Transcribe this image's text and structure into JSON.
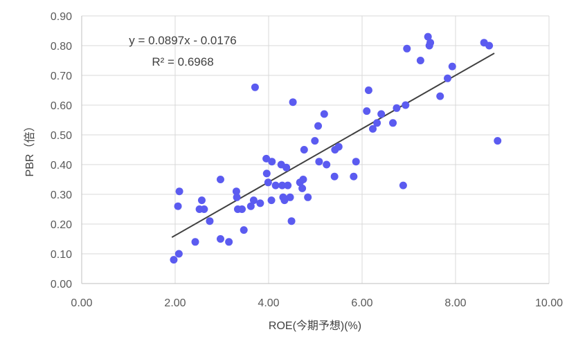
{
  "chart_data": {
    "type": "scatter",
    "title": "",
    "xlabel": "ROE(今期予想)(%)",
    "ylabel": "PBR（倍）",
    "xlim": [
      0,
      10
    ],
    "ylim": [
      0,
      0.9
    ],
    "x_ticks": [
      "0.00",
      "2.00",
      "4.00",
      "6.00",
      "8.00",
      "10.00"
    ],
    "y_ticks": [
      "0.00",
      "0.10",
      "0.20",
      "0.30",
      "0.40",
      "0.50",
      "0.60",
      "0.70",
      "0.80",
      "0.90"
    ],
    "grid": true,
    "legend": "none",
    "colors": {
      "points": "#5B5BF0",
      "trendline": "#404040",
      "grid": "#D9D9D9"
    },
    "points": [
      [
        1.97,
        0.08
      ],
      [
        2.06,
        0.26
      ],
      [
        2.08,
        0.1
      ],
      [
        2.09,
        0.31
      ],
      [
        2.43,
        0.14
      ],
      [
        2.52,
        0.25
      ],
      [
        2.57,
        0.28
      ],
      [
        2.62,
        0.25
      ],
      [
        2.74,
        0.21
      ],
      [
        2.97,
        0.35
      ],
      [
        2.97,
        0.15
      ],
      [
        3.15,
        0.14
      ],
      [
        3.31,
        0.31
      ],
      [
        3.32,
        0.29
      ],
      [
        3.34,
        0.25
      ],
      [
        3.43,
        0.25
      ],
      [
        3.47,
        0.18
      ],
      [
        3.62,
        0.26
      ],
      [
        3.68,
        0.28
      ],
      [
        3.71,
        0.66
      ],
      [
        3.82,
        0.27
      ],
      [
        3.95,
        0.42
      ],
      [
        3.96,
        0.37
      ],
      [
        3.99,
        0.34
      ],
      [
        4.06,
        0.28
      ],
      [
        4.07,
        0.41
      ],
      [
        4.15,
        0.33
      ],
      [
        4.27,
        0.4
      ],
      [
        4.29,
        0.33
      ],
      [
        4.31,
        0.29
      ],
      [
        4.34,
        0.28
      ],
      [
        4.38,
        0.39
      ],
      [
        4.41,
        0.33
      ],
      [
        4.46,
        0.29
      ],
      [
        4.49,
        0.21
      ],
      [
        4.52,
        0.61
      ],
      [
        4.67,
        0.34
      ],
      [
        4.72,
        0.32
      ],
      [
        4.74,
        0.35
      ],
      [
        4.76,
        0.45
      ],
      [
        4.84,
        0.29
      ],
      [
        4.99,
        0.48
      ],
      [
        5.06,
        0.53
      ],
      [
        5.08,
        0.41
      ],
      [
        5.19,
        0.57
      ],
      [
        5.24,
        0.4
      ],
      [
        5.41,
        0.36
      ],
      [
        5.42,
        0.45
      ],
      [
        5.5,
        0.46
      ],
      [
        5.82,
        0.36
      ],
      [
        5.87,
        0.41
      ],
      [
        6.1,
        0.58
      ],
      [
        6.14,
        0.65
      ],
      [
        6.23,
        0.52
      ],
      [
        6.32,
        0.54
      ],
      [
        6.41,
        0.57
      ],
      [
        6.66,
        0.54
      ],
      [
        6.74,
        0.59
      ],
      [
        6.88,
        0.33
      ],
      [
        6.93,
        0.6
      ],
      [
        6.96,
        0.79
      ],
      [
        7.25,
        0.75
      ],
      [
        7.41,
        0.83
      ],
      [
        7.44,
        0.8
      ],
      [
        7.46,
        0.81
      ],
      [
        7.67,
        0.63
      ],
      [
        7.83,
        0.69
      ],
      [
        7.93,
        0.73
      ],
      [
        8.61,
        0.81
      ],
      [
        8.72,
        0.8
      ],
      [
        8.9,
        0.48
      ]
    ],
    "trendline": {
      "slope": 0.0897,
      "intercept": -0.0176,
      "x_range": [
        1.93,
        8.83
      ],
      "equation": "y = 0.0897x - 0.0176",
      "r_squared": "R² = 0.6968"
    }
  }
}
